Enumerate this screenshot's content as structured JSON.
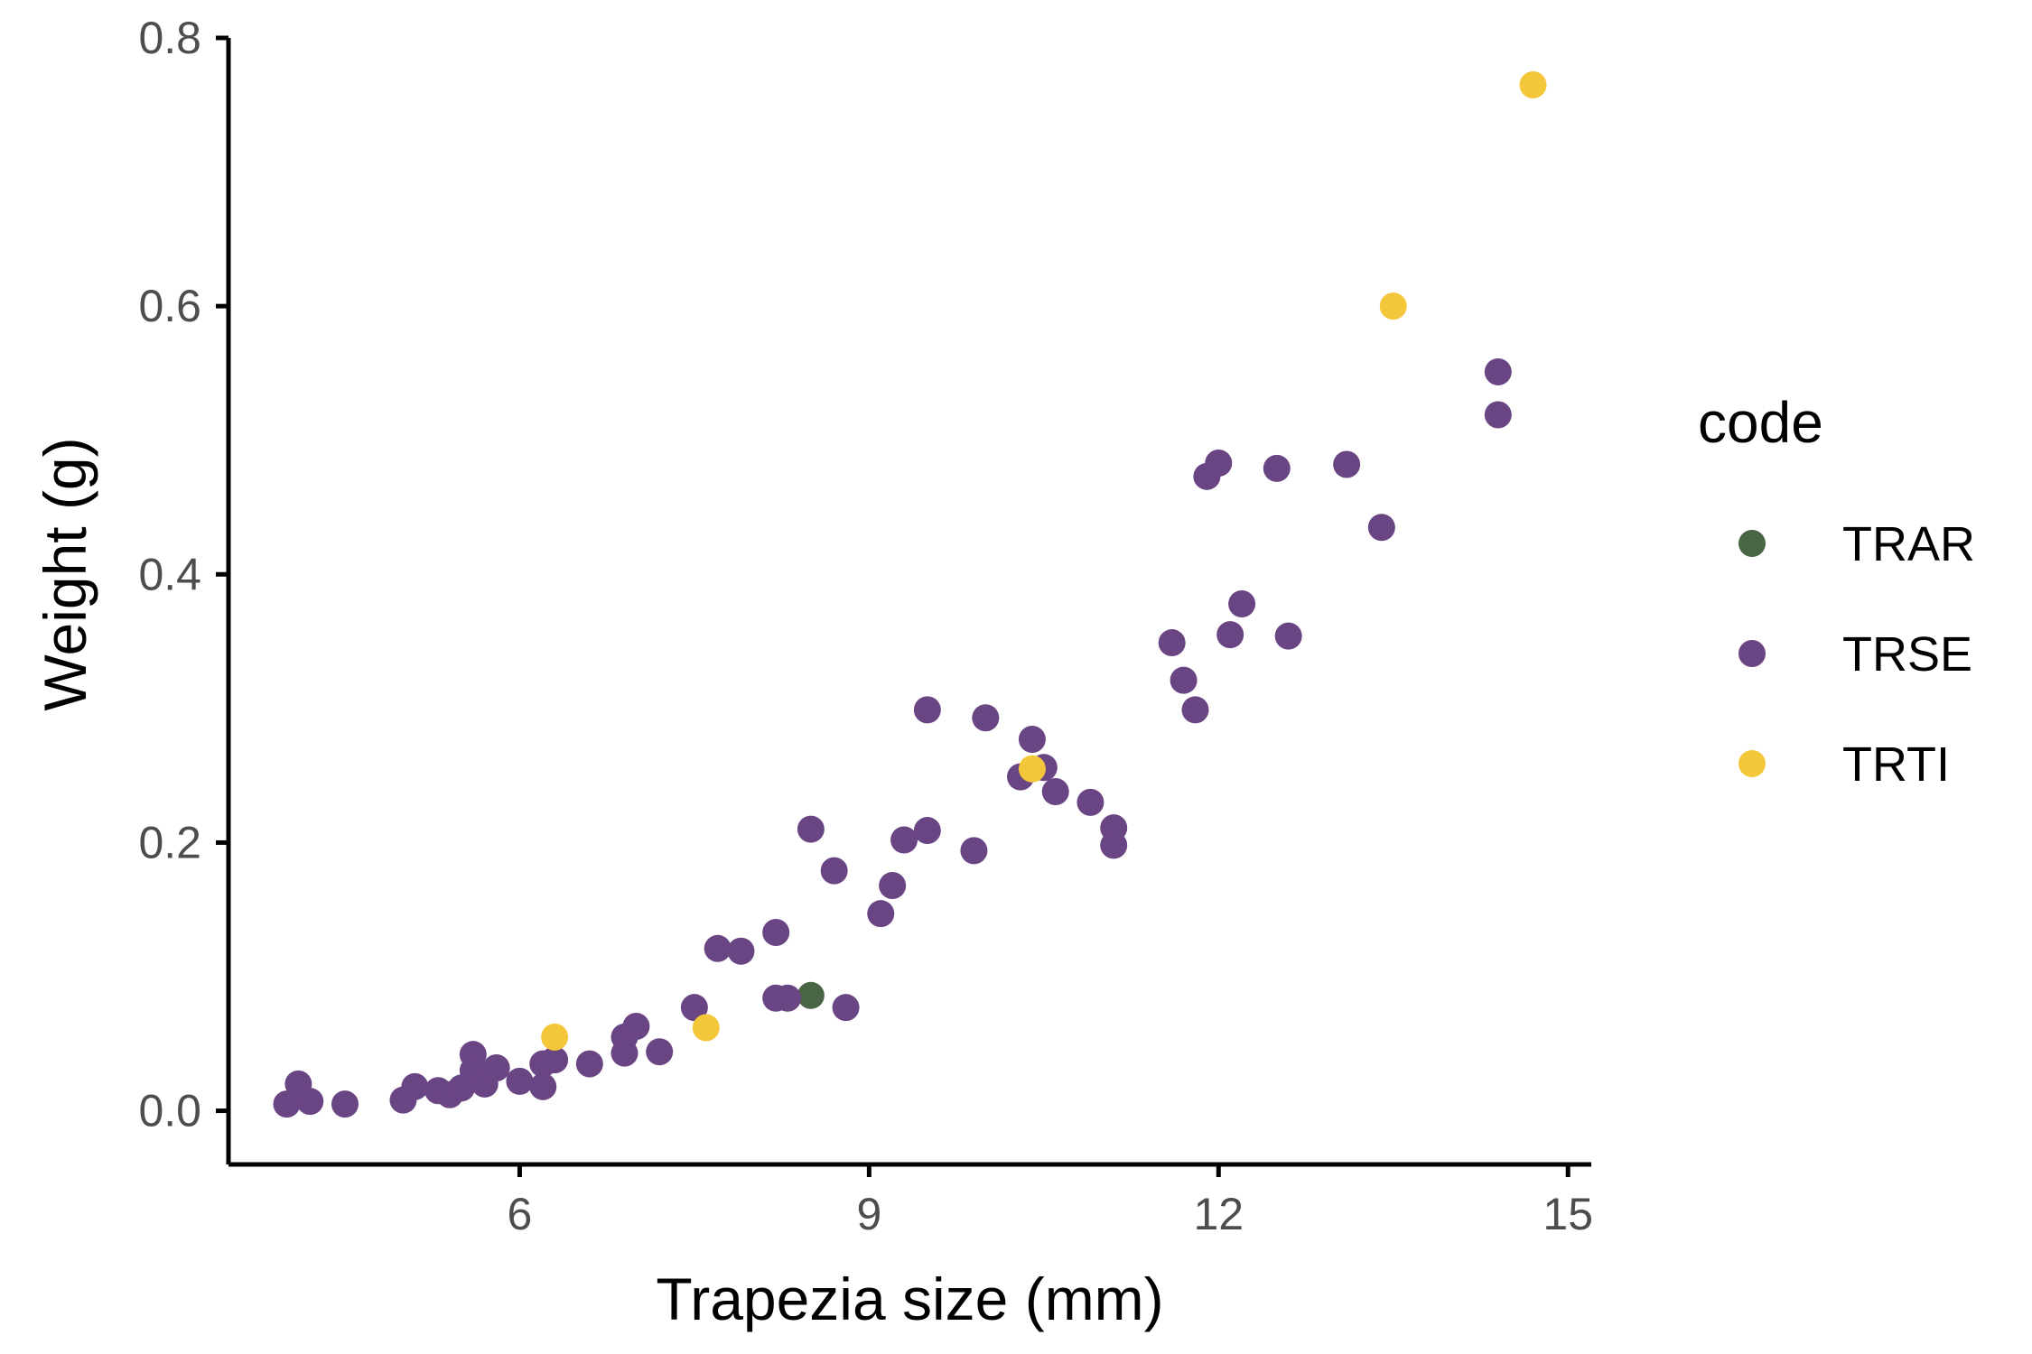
{
  "chart_data": {
    "type": "scatter",
    "title": "",
    "xlabel": "Trapezia size (mm)",
    "ylabel": "Weight (g)",
    "xlim": [
      3.5,
      15.2
    ],
    "ylim": [
      -0.04,
      0.8
    ],
    "xticks": [
      6,
      9,
      12,
      15
    ],
    "xtick_labels": [
      "6",
      "9",
      "12",
      "15"
    ],
    "yticks": [
      0.0,
      0.2,
      0.4,
      0.6,
      0.8
    ],
    "ytick_labels": [
      "0.0",
      "0.2",
      "0.4",
      "0.6",
      "0.8"
    ],
    "grid": false,
    "legend": {
      "title": "code",
      "placement": "right"
    },
    "series": [
      {
        "name": "TRAR",
        "color": "#4a6446",
        "points": [
          [
            8.5,
            0.086
          ]
        ]
      },
      {
        "name": "TRSE",
        "color": "#6a4584",
        "points": [
          [
            4.0,
            0.005
          ],
          [
            4.1,
            0.02
          ],
          [
            4.2,
            0.007
          ],
          [
            4.5,
            0.005
          ],
          [
            5.0,
            0.008
          ],
          [
            5.1,
            0.018
          ],
          [
            5.3,
            0.015
          ],
          [
            5.4,
            0.012
          ],
          [
            5.5,
            0.017
          ],
          [
            5.6,
            0.042
          ],
          [
            5.6,
            0.03
          ],
          [
            5.7,
            0.02
          ],
          [
            5.8,
            0.032
          ],
          [
            6.0,
            0.022
          ],
          [
            6.2,
            0.035
          ],
          [
            6.2,
            0.018
          ],
          [
            6.3,
            0.038
          ],
          [
            6.6,
            0.035
          ],
          [
            6.9,
            0.055
          ],
          [
            6.9,
            0.043
          ],
          [
            7.0,
            0.063
          ],
          [
            7.2,
            0.044
          ],
          [
            7.5,
            0.077
          ],
          [
            7.7,
            0.121
          ],
          [
            7.9,
            0.119
          ],
          [
            8.2,
            0.133
          ],
          [
            8.2,
            0.084
          ],
          [
            8.3,
            0.084
          ],
          [
            8.5,
            0.21
          ],
          [
            8.7,
            0.179
          ],
          [
            8.8,
            0.077
          ],
          [
            9.1,
            0.147
          ],
          [
            9.2,
            0.168
          ],
          [
            9.3,
            0.202
          ],
          [
            9.5,
            0.209
          ],
          [
            9.5,
            0.299
          ],
          [
            9.9,
            0.194
          ],
          [
            10.0,
            0.293
          ],
          [
            10.3,
            0.249
          ],
          [
            10.4,
            0.277
          ],
          [
            10.5,
            0.256
          ],
          [
            10.6,
            0.238
          ],
          [
            10.9,
            0.23
          ],
          [
            11.1,
            0.211
          ],
          [
            11.1,
            0.198
          ],
          [
            11.6,
            0.349
          ],
          [
            11.7,
            0.321
          ],
          [
            11.8,
            0.299
          ],
          [
            11.9,
            0.473
          ],
          [
            12.0,
            0.483
          ],
          [
            12.1,
            0.355
          ],
          [
            12.2,
            0.378
          ],
          [
            12.5,
            0.479
          ],
          [
            12.6,
            0.354
          ],
          [
            13.1,
            0.482
          ],
          [
            13.4,
            0.435
          ],
          [
            14.4,
            0.551
          ],
          [
            14.4,
            0.519
          ]
        ]
      },
      {
        "name": "TRTI",
        "color": "#f4c63a",
        "points": [
          [
            6.3,
            0.055
          ],
          [
            7.6,
            0.062
          ],
          [
            10.4,
            0.255
          ],
          [
            13.5,
            0.6
          ],
          [
            14.7,
            0.765
          ]
        ]
      }
    ]
  }
}
